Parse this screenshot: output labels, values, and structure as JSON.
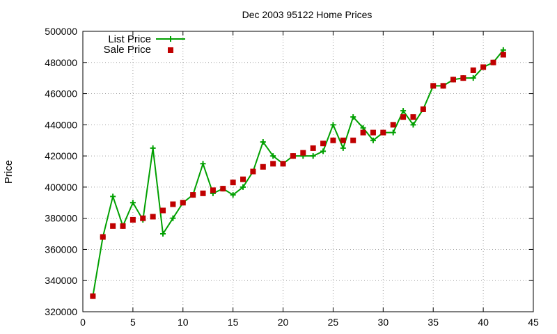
{
  "chart_data": {
    "type": "line",
    "title": "Dec 2003 95122 Home Prices",
    "xlabel": "",
    "ylabel": "Price",
    "xlim": [
      0,
      45
    ],
    "ylim": [
      320000,
      500000
    ],
    "xticks": [
      0,
      5,
      10,
      15,
      20,
      25,
      30,
      35,
      40,
      45
    ],
    "yticks": [
      320000,
      340000,
      360000,
      380000,
      400000,
      420000,
      440000,
      460000,
      480000,
      500000
    ],
    "grid": true,
    "legend_position": "top-left",
    "x": [
      1,
      2,
      3,
      4,
      5,
      6,
      7,
      8,
      9,
      10,
      11,
      12,
      13,
      14,
      15,
      16,
      17,
      18,
      19,
      20,
      21,
      22,
      23,
      24,
      25,
      26,
      27,
      28,
      29,
      30,
      31,
      32,
      33,
      34,
      35,
      36,
      37,
      38,
      39,
      40,
      41,
      42
    ],
    "series": [
      {
        "name": "List Price",
        "style": "lines+crosses",
        "color": "#00a000",
        "values": [
          330000,
          368000,
          394000,
          375000,
          390000,
          379000,
          425000,
          370000,
          380000,
          390000,
          395000,
          415000,
          396000,
          399000,
          395000,
          400000,
          410000,
          429000,
          420000,
          415000,
          420000,
          420000,
          420000,
          423000,
          440000,
          425000,
          445000,
          438000,
          430000,
          435000,
          435000,
          449000,
          440000,
          450000,
          465000,
          465000,
          469000,
          470000,
          470000,
          477000,
          480000,
          488000
        ]
      },
      {
        "name": "Sale Price",
        "style": "squares",
        "color": "#c00000",
        "values": [
          330000,
          368000,
          375000,
          375000,
          379000,
          380000,
          381000,
          385000,
          389000,
          390000,
          395000,
          396000,
          398000,
          399000,
          403000,
          405000,
          410000,
          413000,
          415000,
          415000,
          420000,
          422000,
          425000,
          428000,
          430000,
          430000,
          430000,
          435000,
          435000,
          435000,
          440000,
          445000,
          445000,
          450000,
          465000,
          465000,
          469000,
          470000,
          475000,
          477000,
          480000,
          485000
        ]
      }
    ]
  }
}
